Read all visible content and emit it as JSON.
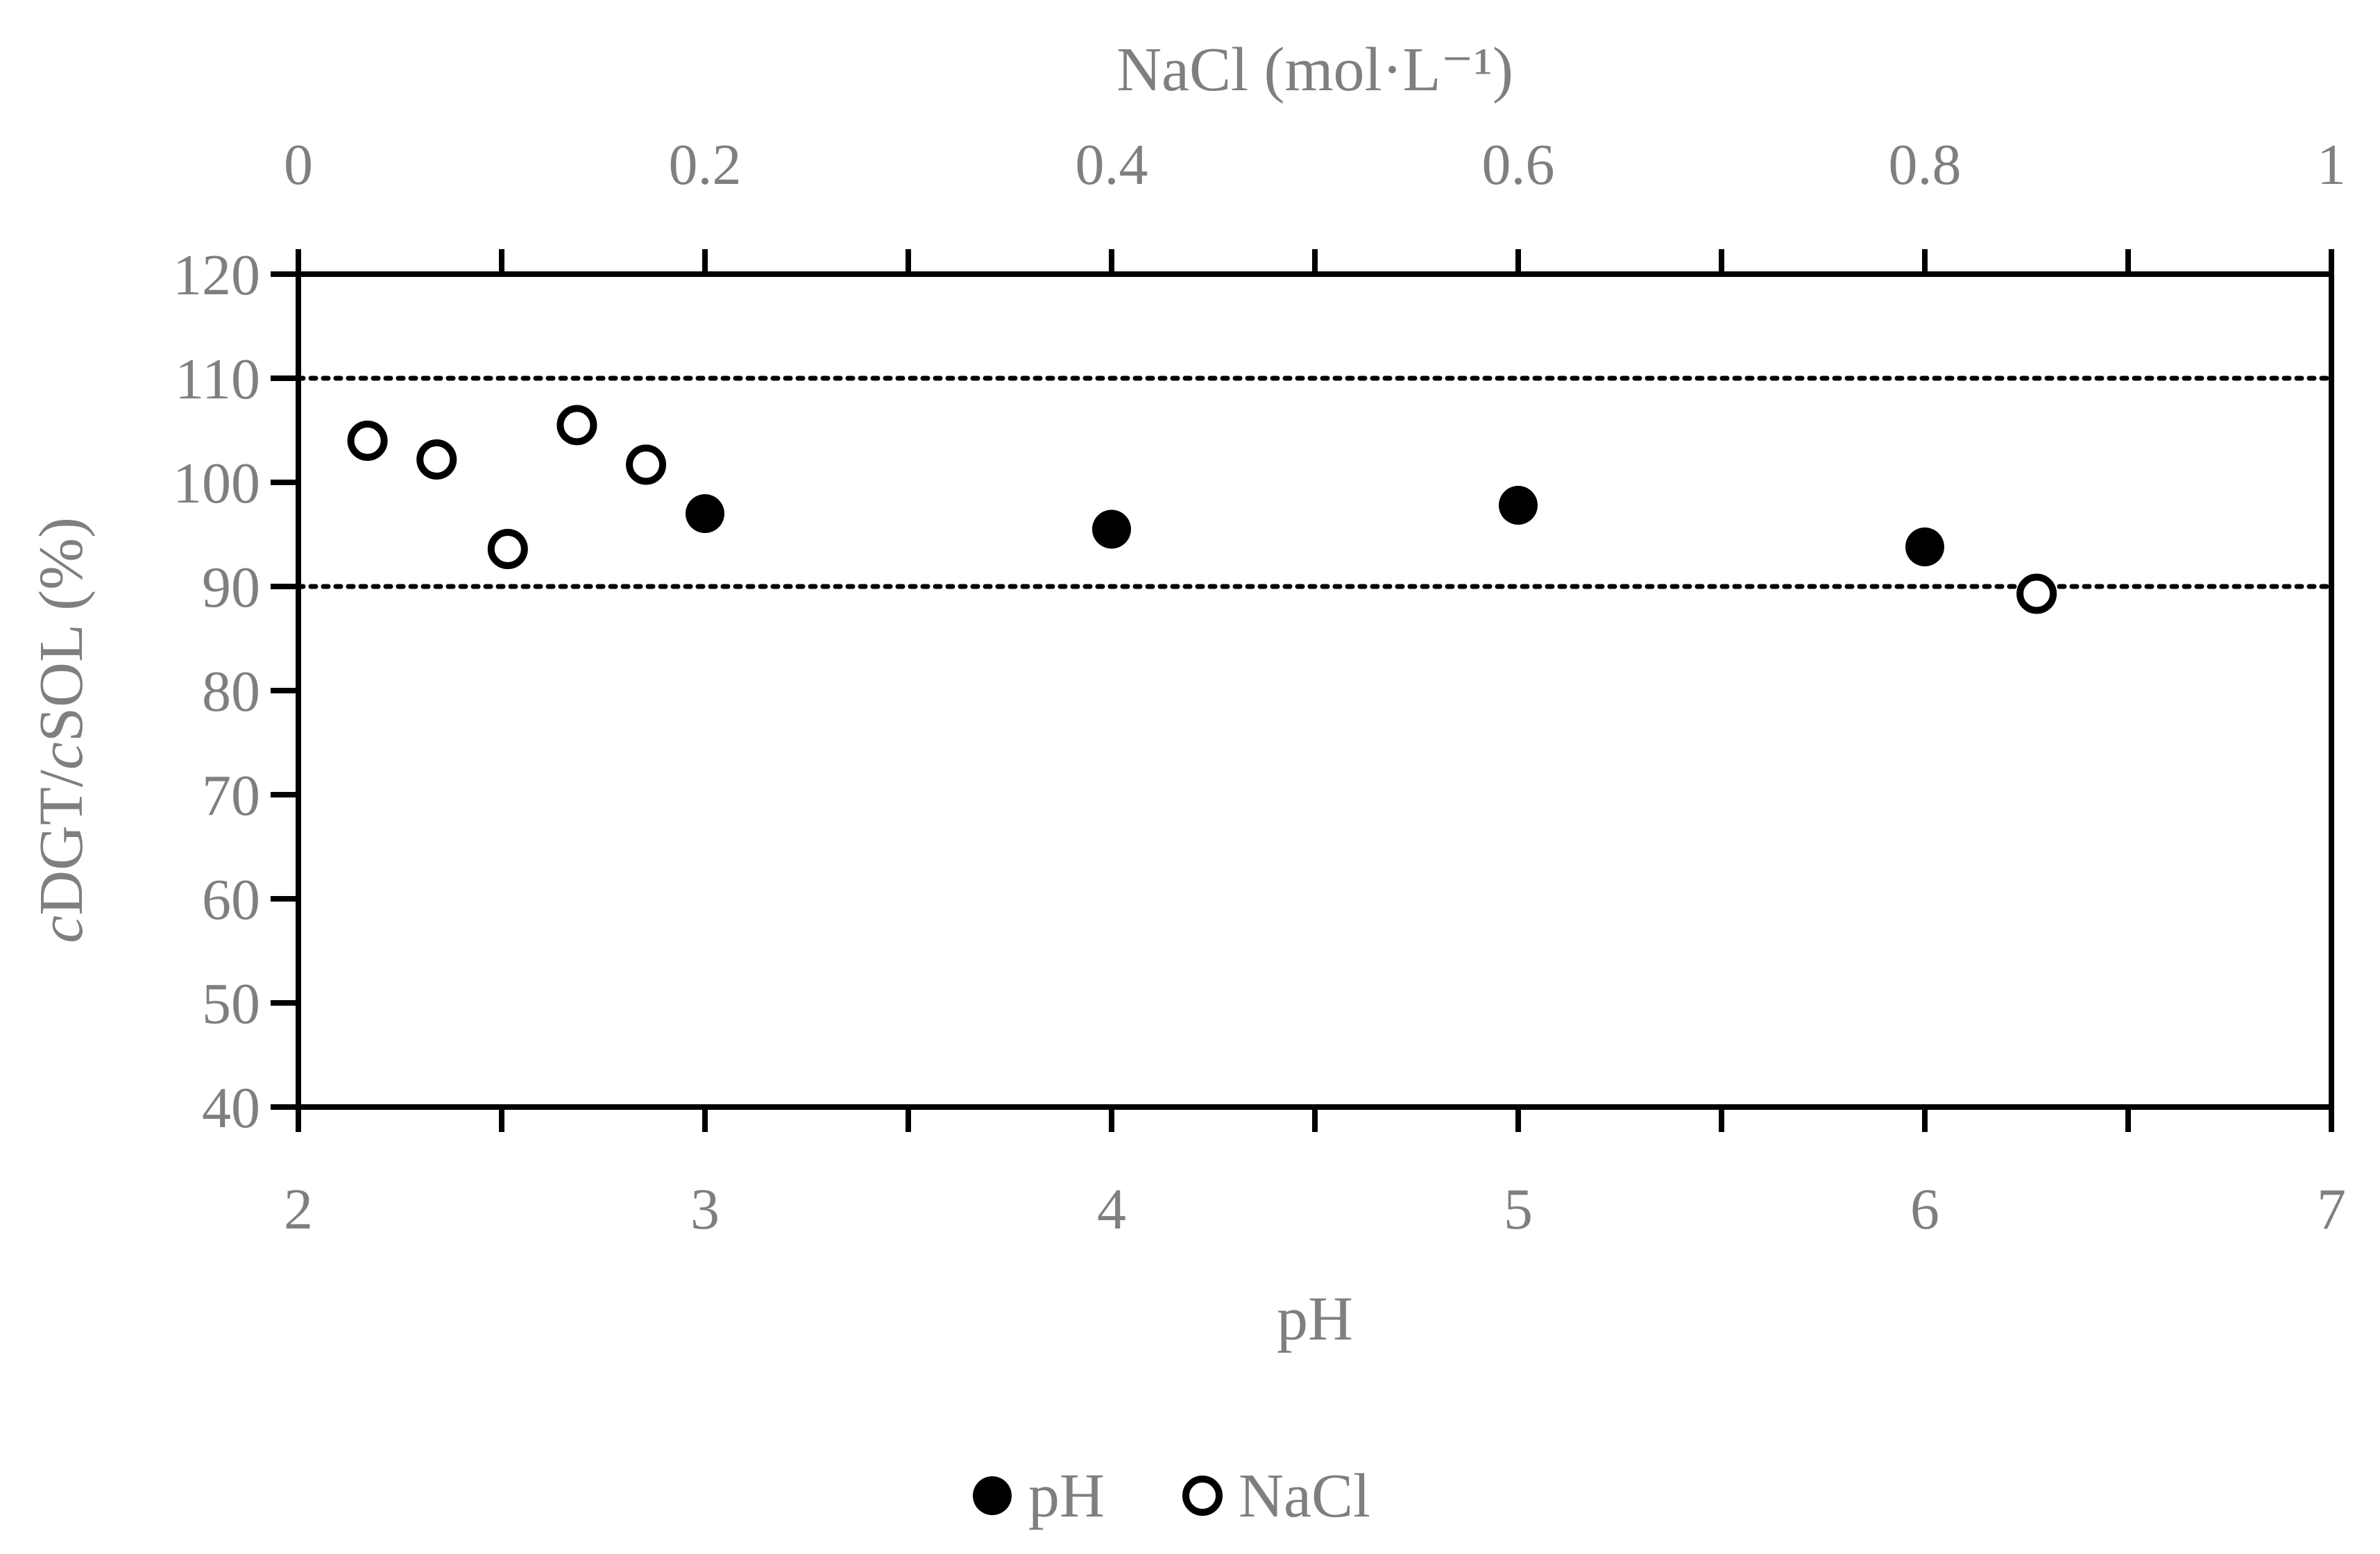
{
  "chart_data": {
    "type": "scatter",
    "title": "",
    "xlabel": "pH",
    "x2label": "NaCl (mol·L⁻¹)",
    "ylabel_parts": [
      "c",
      "DGT/",
      "c",
      "SOL (%)"
    ],
    "xlim": [
      2,
      7
    ],
    "x2lim": [
      0,
      1
    ],
    "ylim": [
      40,
      120
    ],
    "x_ticks": [
      "2",
      "3",
      "4",
      "5",
      "6",
      "7"
    ],
    "x2_ticks": [
      "0",
      "0.2",
      "0.4",
      "0.6",
      "0.8",
      "1"
    ],
    "y_ticks": [
      "40",
      "50",
      "60",
      "70",
      "80",
      "90",
      "100",
      "110",
      "120"
    ],
    "reference_lines": [
      90,
      110
    ],
    "legend_position": "bottom",
    "series": [
      {
        "name": "pH",
        "axis": "bottom",
        "marker": "filled-circle",
        "x": [
          3,
          4,
          5,
          6
        ],
        "y": [
          97,
          95.5,
          97.8,
          93.8
        ]
      },
      {
        "name": "NaCl",
        "axis": "top",
        "marker": "open-circle",
        "x": [
          0.034,
          0.068,
          0.103,
          0.137,
          0.171,
          0.855
        ],
        "y": [
          104,
          102.2,
          93.6,
          105.5,
          101.7,
          89.3
        ]
      }
    ]
  },
  "colors": {
    "axis": "#000000",
    "text": "#7f7f7f",
    "marker": "#000000",
    "background": "#ffffff"
  }
}
